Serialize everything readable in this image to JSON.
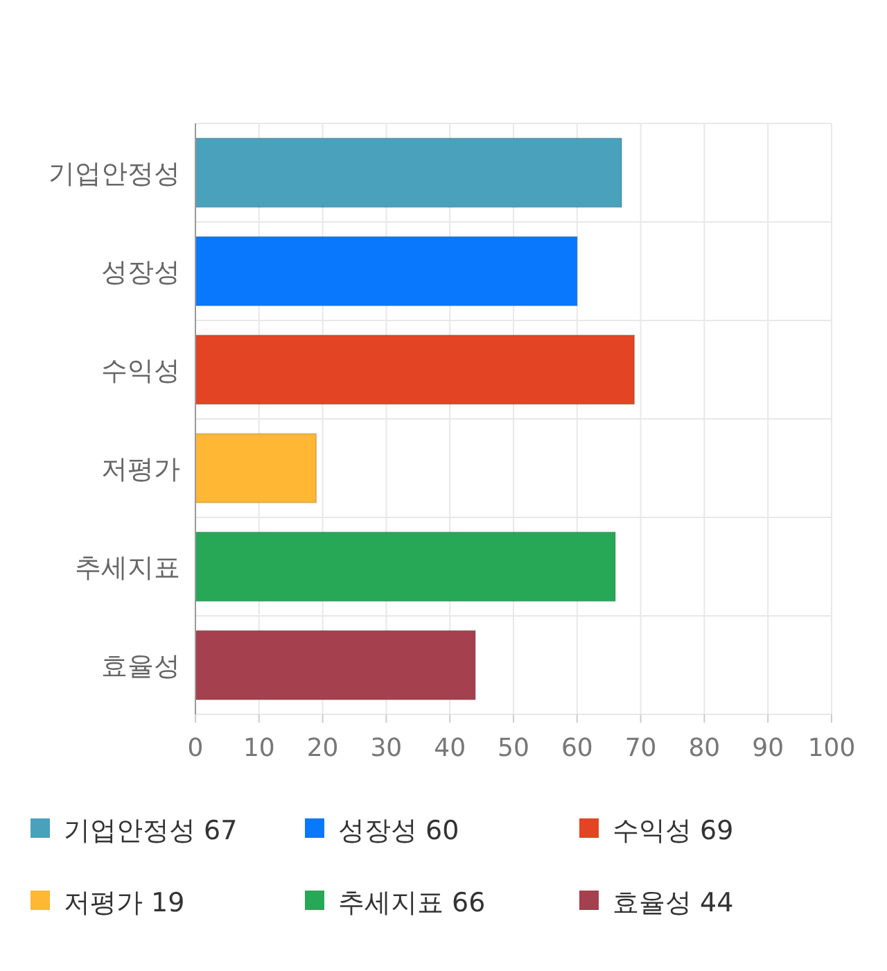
{
  "chart_data": {
    "type": "bar",
    "orientation": "horizontal",
    "categories": [
      "기업안정성",
      "성장성",
      "수익성",
      "저평가",
      "추세지표",
      "효율성"
    ],
    "values": [
      67,
      60,
      69,
      19,
      66,
      44
    ],
    "colors": [
      "#4aa1bc",
      "#0a78fc",
      "#e34424",
      "#ffb734",
      "#27a857",
      "#a5404f"
    ],
    "xlim": [
      0,
      100
    ],
    "xticks": [
      0,
      10,
      20,
      30,
      40,
      50,
      60,
      70,
      80,
      90,
      100
    ],
    "grid": true,
    "annotations": [
      "기업안정성 67",
      "성장성 60",
      "수익성 69",
      "저평가 19",
      "추세지표 66",
      "효율성 44"
    ]
  }
}
